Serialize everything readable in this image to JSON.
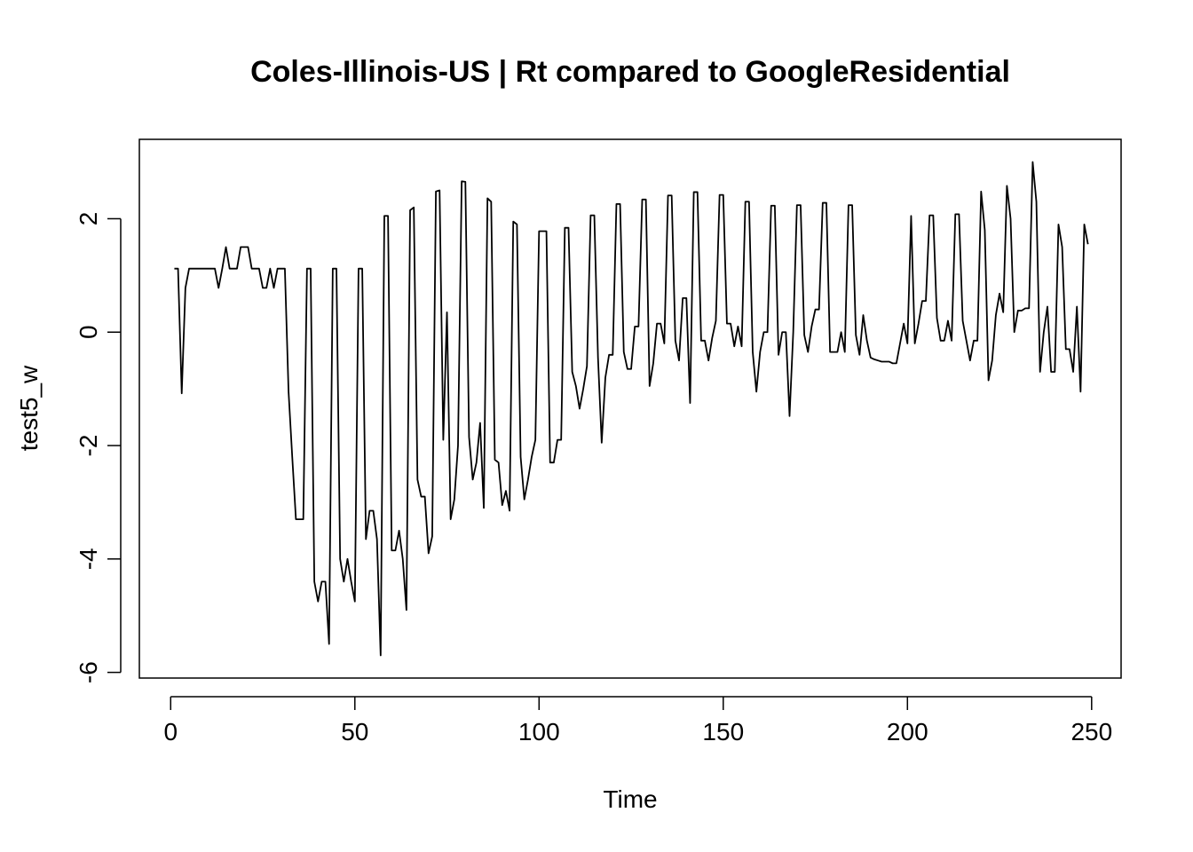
{
  "chart_data": {
    "type": "line",
    "title": "Coles-Illinois-US | Rt compared to GoogleResidential",
    "xlabel": "Time",
    "ylabel": "test5_w",
    "xlim": [
      -8.5,
      258
    ],
    "ylim": [
      -6.1,
      3.4
    ],
    "x_ticks": [
      0,
      50,
      100,
      150,
      200,
      250
    ],
    "y_ticks": [
      -6,
      -4,
      -2,
      0,
      2
    ],
    "x_tick_labels": [
      "0",
      "50",
      "100",
      "150",
      "200",
      "250"
    ],
    "y_tick_labels": [
      "-6",
      "-4",
      "-2",
      "0",
      "2"
    ],
    "grid": false,
    "line_color": "#000000",
    "series": [
      {
        "name": "",
        "x_start": 1,
        "values": [
          1.12,
          1.12,
          -1.08,
          0.78,
          1.12,
          1.12,
          1.12,
          1.12,
          1.12,
          1.12,
          1.12,
          1.12,
          0.78,
          1.12,
          1.5,
          1.12,
          1.12,
          1.12,
          1.5,
          1.5,
          1.5,
          1.12,
          1.12,
          1.12,
          0.78,
          0.78,
          1.12,
          0.78,
          1.12,
          1.12,
          1.12,
          -1.05,
          -2.2,
          -3.3,
          -3.3,
          -3.3,
          1.12,
          1.12,
          -4.4,
          -4.75,
          -4.4,
          -4.4,
          -5.5,
          1.12,
          1.12,
          -4.0,
          -4.4,
          -4.0,
          -4.4,
          -4.75,
          1.12,
          1.12,
          -3.65,
          -3.15,
          -3.15,
          -3.65,
          -5.7,
          2.05,
          2.05,
          -3.85,
          -3.85,
          -3.5,
          -4.0,
          -4.9,
          2.15,
          2.2,
          -2.6,
          -2.9,
          -2.9,
          -3.9,
          -3.6,
          2.48,
          2.5,
          -1.9,
          0.35,
          -3.3,
          -2.95,
          -2.0,
          2.66,
          2.65,
          -1.85,
          -2.6,
          -2.3,
          -1.6,
          -3.1,
          2.36,
          2.3,
          -2.25,
          -2.3,
          -3.05,
          -2.8,
          -3.15,
          1.95,
          1.9,
          -2.2,
          -2.95,
          -2.6,
          -2.2,
          -1.9,
          1.78,
          1.78,
          1.78,
          -2.3,
          -2.3,
          -1.9,
          -1.9,
          1.84,
          1.84,
          -0.7,
          -0.95,
          -1.35,
          -1.0,
          -0.6,
          2.06,
          2.06,
          -0.45,
          -1.95,
          -0.8,
          -0.4,
          -0.4,
          2.26,
          2.26,
          -0.35,
          -0.65,
          -0.65,
          0.1,
          0.1,
          2.34,
          2.34,
          -0.95,
          -0.55,
          0.15,
          0.15,
          -0.2,
          2.41,
          2.41,
          -0.15,
          -0.5,
          0.6,
          0.6,
          -1.25,
          2.47,
          2.47,
          -0.15,
          -0.15,
          -0.5,
          -0.1,
          0.2,
          2.42,
          2.42,
          0.15,
          0.15,
          -0.25,
          0.1,
          -0.25,
          2.3,
          2.3,
          -0.35,
          -1.05,
          -0.35,
          0.0,
          0.0,
          2.23,
          2.23,
          -0.4,
          0.0,
          0.0,
          -1.48,
          0.0,
          2.24,
          2.24,
          -0.05,
          -0.35,
          0.1,
          0.4,
          0.4,
          2.28,
          2.28,
          -0.35,
          -0.35,
          -0.35,
          0.0,
          -0.35,
          2.24,
          2.24,
          -0.05,
          -0.4,
          0.3,
          -0.15,
          -0.45,
          -0.48,
          -0.5,
          -0.52,
          -0.52,
          -0.52,
          -0.55,
          -0.55,
          -0.2,
          0.15,
          -0.2,
          2.05,
          -0.2,
          0.15,
          0.55,
          0.55,
          2.06,
          2.06,
          0.25,
          -0.15,
          -0.15,
          0.2,
          -0.15,
          2.08,
          2.08,
          0.2,
          -0.15,
          -0.5,
          -0.15,
          -0.15,
          2.48,
          1.8,
          -0.85,
          -0.5,
          0.3,
          0.68,
          0.35,
          2.58,
          2.0,
          0.0,
          0.38,
          0.38,
          0.42,
          0.42,
          3.0,
          2.3,
          -0.7,
          0.0,
          0.45,
          -0.7,
          -0.7,
          1.9,
          1.5,
          -0.3,
          -0.3,
          -0.7,
          0.45,
          -1.05,
          1.9,
          1.55
        ]
      }
    ]
  }
}
